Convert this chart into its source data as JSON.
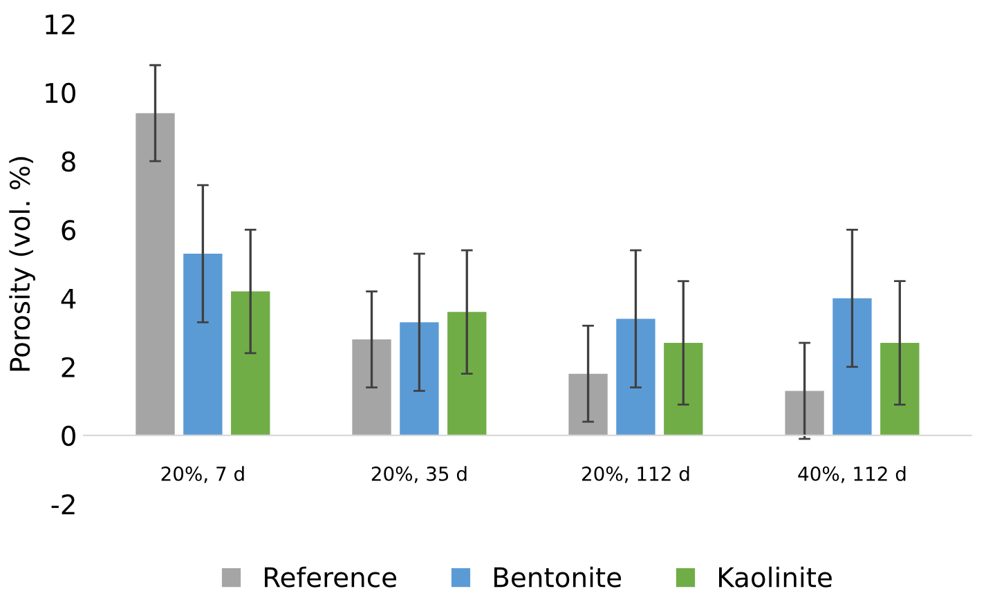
{
  "chart_data": {
    "type": "bar",
    "ylabel": "Porosity (vol. %)",
    "categories": [
      "20%, 7 d",
      "20%, 35 d",
      "20%, 112 d",
      "40%, 112 d"
    ],
    "series": [
      {
        "name": "Reference",
        "color": "#a5a5a5",
        "values": [
          9.4,
          2.8,
          1.8,
          1.3
        ],
        "errors": [
          1.4,
          1.4,
          1.4,
          1.4
        ]
      },
      {
        "name": "Bentonite",
        "color": "#5b9bd5",
        "values": [
          5.3,
          3.3,
          3.4,
          4.0
        ],
        "errors": [
          2.0,
          2.0,
          2.0,
          2.0
        ]
      },
      {
        "name": "Kaolinite",
        "color": "#70ad47",
        "values": [
          4.2,
          3.6,
          2.7,
          2.7
        ],
        "errors": [
          1.8,
          1.8,
          1.8,
          1.8
        ]
      }
    ],
    "ylim": [
      -2,
      12
    ],
    "yticks": [
      -2,
      0,
      2,
      4,
      6,
      8,
      10,
      12
    ],
    "grid": false,
    "legend": "bottom"
  }
}
